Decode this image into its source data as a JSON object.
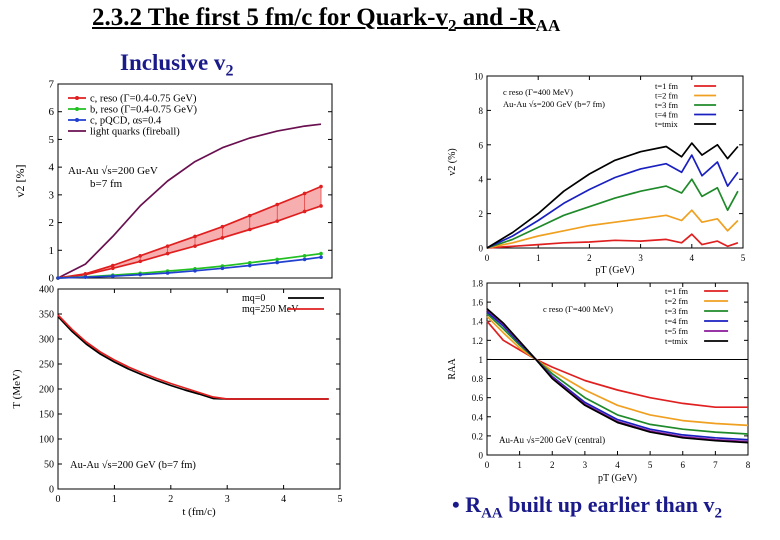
{
  "slide": {
    "title": "2.3.2 The first 5 fm/c for Quark-v",
    "title_sub": "2",
    "title_mid": " and -R",
    "title_sub2": "AA",
    "subtitle": "Inclusive v",
    "subtitle_sub": "2",
    "footnote_bullet": "•",
    "footnote_a": "R",
    "footnote_sub": "AA",
    "footnote_b": " built up earlier than v",
    "footnote_sub2": "2",
    "colors": {
      "title_blue": "#1a1a8a"
    }
  },
  "chart_data": [
    {
      "id": "v2-time",
      "type": "line",
      "title": "",
      "xlabel": "",
      "ylabel": "v2 [%]",
      "xlim": [
        0,
        5
      ],
      "ylim": [
        0,
        7
      ],
      "yticks": [
        0,
        1,
        2,
        3,
        4,
        5,
        6,
        7
      ],
      "xticks": [],
      "legend": [
        {
          "label": "c, reso (Γ=0.4-0.75 GeV)",
          "color": "#e02020"
        },
        {
          "label": "b, reso (Γ=0.4-0.75 GeV)",
          "color": "#22c022"
        },
        {
          "label": "c, pQCD, αs=0.4",
          "color": "#2040d0"
        },
        {
          "label": "light quarks (fireball)",
          "color": "#6a1050"
        }
      ],
      "annotations": [
        "Au-Au √s=200 GeV",
        "b=7 fm"
      ],
      "series": [
        {
          "name": "light quarks (fireball)",
          "color": "#6a1050",
          "x": [
            0,
            0.5,
            1,
            1.5,
            2,
            2.5,
            3,
            3.5,
            4,
            4.5,
            4.8
          ],
          "y": [
            0,
            0.5,
            1.5,
            2.6,
            3.5,
            4.2,
            4.7,
            5.05,
            5.3,
            5.48,
            5.55
          ]
        },
        {
          "name": "c, reso upper",
          "color": "#e02020",
          "x": [
            0,
            0.5,
            1,
            1.5,
            2,
            2.5,
            3,
            3.5,
            4,
            4.5,
            4.8
          ],
          "y": [
            0,
            0.15,
            0.45,
            0.8,
            1.15,
            1.5,
            1.85,
            2.25,
            2.65,
            3.05,
            3.3
          ]
        },
        {
          "name": "c, reso lower",
          "color": "#e02020",
          "x": [
            0,
            0.5,
            1,
            1.5,
            2,
            2.5,
            3,
            3.5,
            4,
            4.5,
            4.8
          ],
          "y": [
            0,
            0.12,
            0.35,
            0.6,
            0.88,
            1.15,
            1.45,
            1.75,
            2.05,
            2.4,
            2.6
          ]
        },
        {
          "name": "b, reso",
          "color": "#22c022",
          "x": [
            0,
            0.5,
            1,
            1.5,
            2,
            2.5,
            3,
            3.5,
            4,
            4.5,
            4.8
          ],
          "y": [
            0,
            0.04,
            0.1,
            0.17,
            0.25,
            0.33,
            0.43,
            0.55,
            0.67,
            0.8,
            0.88
          ]
        },
        {
          "name": "c, pQCD",
          "color": "#2040d0",
          "x": [
            0,
            0.5,
            1,
            1.5,
            2,
            2.5,
            3,
            3.5,
            4,
            4.5,
            4.8
          ],
          "y": [
            0,
            0.03,
            0.07,
            0.12,
            0.18,
            0.26,
            0.35,
            0.45,
            0.56,
            0.67,
            0.75
          ]
        }
      ],
      "band": {
        "between": [
          "c, reso upper",
          "c, reso lower"
        ],
        "color": "#f4a0a0"
      }
    },
    {
      "id": "temperature",
      "type": "line",
      "title": "",
      "xlabel": "t (fm/c)",
      "ylabel": "T (MeV)",
      "xlim": [
        0,
        5
      ],
      "ylim": [
        0,
        400
      ],
      "xticks": [
        0,
        1,
        2,
        3,
        4,
        5
      ],
      "yticks": [
        0,
        50,
        100,
        150,
        200,
        250,
        300,
        350,
        400
      ],
      "legend": [
        {
          "label": "mq=0",
          "color": "#000000"
        },
        {
          "label": "mq=250 MeV",
          "color": "#e02020"
        }
      ],
      "annotations": [
        "Au-Au √s=200 GeV (b=7 fm)"
      ],
      "series": [
        {
          "name": "mq=0",
          "color": "#000000",
          "x": [
            0,
            0.25,
            0.5,
            0.75,
            1,
            1.25,
            1.5,
            1.75,
            2,
            2.25,
            2.5,
            2.75,
            3,
            3.5,
            4,
            4.5,
            4.8
          ],
          "y": [
            345,
            315,
            290,
            270,
            254,
            240,
            228,
            217,
            207,
            198,
            190,
            181,
            180,
            180,
            180,
            180,
            180
          ]
        },
        {
          "name": "mq=250 MeV",
          "color": "#e02020",
          "x": [
            0,
            0.25,
            0.5,
            0.75,
            1,
            1.25,
            1.5,
            1.75,
            2,
            2.25,
            2.5,
            2.75,
            3,
            3.5,
            4,
            4.5,
            4.8
          ],
          "y": [
            348,
            319,
            294,
            274,
            258,
            244,
            232,
            221,
            211,
            202,
            193,
            184,
            180,
            180,
            180,
            180,
            180
          ]
        }
      ]
    },
    {
      "id": "v2-pt",
      "type": "line",
      "title": "",
      "xlabel": "pT (GeV)",
      "ylabel": "v2 (%)",
      "xlim": [
        0,
        5
      ],
      "ylim": [
        0,
        10
      ],
      "xticks": [
        0,
        1,
        2,
        3,
        4,
        5
      ],
      "yticks": [
        0,
        2,
        4,
        6,
        8,
        10
      ],
      "legend": [
        {
          "label": "t=1 fm",
          "color": "#e02020"
        },
        {
          "label": "t=2 fm",
          "color": "#f0a020"
        },
        {
          "label": "t=3 fm",
          "color": "#1f8a2a"
        },
        {
          "label": "t=4 fm",
          "color": "#1a20c0"
        },
        {
          "label": "t=tmix",
          "color": "#000000"
        }
      ],
      "annotations": [
        "c reso (Γ=400 MeV)",
        "Au-Au √s=200 GeV (b=7 fm)"
      ],
      "series": [
        {
          "name": "t=1 fm",
          "color": "#e02020",
          "x": [
            0,
            0.5,
            1,
            1.5,
            2,
            2.5,
            3,
            3.5,
            3.8,
            4,
            4.2,
            4.5,
            4.7,
            4.9
          ],
          "y": [
            0,
            0.1,
            0.2,
            0.3,
            0.35,
            0.45,
            0.4,
            0.5,
            0.3,
            0.8,
            0.2,
            0.4,
            0.1,
            0.3
          ]
        },
        {
          "name": "t=2 fm",
          "color": "#f0a020",
          "x": [
            0,
            0.5,
            1,
            1.5,
            2,
            2.5,
            3,
            3.5,
            3.8,
            4,
            4.2,
            4.5,
            4.7,
            4.9
          ],
          "y": [
            0,
            0.3,
            0.7,
            1.0,
            1.3,
            1.5,
            1.7,
            1.9,
            1.6,
            2.2,
            1.5,
            1.7,
            1.0,
            1.6
          ]
        },
        {
          "name": "t=3 fm",
          "color": "#1f8a2a",
          "x": [
            0,
            0.5,
            1,
            1.5,
            2,
            2.5,
            3,
            3.5,
            3.8,
            4,
            4.2,
            4.5,
            4.7,
            4.9
          ],
          "y": [
            0,
            0.5,
            1.2,
            1.9,
            2.4,
            2.9,
            3.3,
            3.6,
            3.2,
            4.0,
            3.0,
            3.5,
            2.2,
            3.3
          ]
        },
        {
          "name": "t=4 fm",
          "color": "#1a20c0",
          "x": [
            0,
            0.5,
            1,
            1.5,
            2,
            2.5,
            3,
            3.5,
            3.8,
            4,
            4.2,
            4.5,
            4.7,
            4.9
          ],
          "y": [
            0,
            0.7,
            1.6,
            2.6,
            3.4,
            4.1,
            4.6,
            4.9,
            4.4,
            5.4,
            4.2,
            5.0,
            3.6,
            4.4
          ]
        },
        {
          "name": "t=tmix",
          "color": "#000000",
          "x": [
            0,
            0.5,
            1,
            1.5,
            2,
            2.5,
            3,
            3.5,
            3.8,
            4,
            4.2,
            4.5,
            4.7,
            4.9
          ],
          "y": [
            0,
            0.9,
            2.0,
            3.3,
            4.3,
            5.1,
            5.6,
            5.9,
            5.3,
            6.1,
            5.4,
            6.0,
            5.2,
            5.9
          ]
        }
      ]
    },
    {
      "id": "raa-pt",
      "type": "line",
      "title": "",
      "xlabel": "pT (GeV)",
      "ylabel": "RAA",
      "xlim": [
        0,
        8
      ],
      "ylim": [
        0,
        1.8
      ],
      "xticks": [
        0,
        1,
        2,
        3,
        4,
        5,
        6,
        7,
        8
      ],
      "yticks": [
        0,
        0.2,
        0.4,
        0.6,
        0.8,
        1,
        1.2,
        1.4,
        1.6,
        1.8
      ],
      "legend": [
        {
          "label": "t=1 fm",
          "color": "#e02020"
        },
        {
          "label": "t=2 fm",
          "color": "#f0a020"
        },
        {
          "label": "t=3 fm",
          "color": "#1f8a2a"
        },
        {
          "label": "t=4 fm",
          "color": "#1a20c0"
        },
        {
          "label": "t=5 fm",
          "color": "#8a1a9a"
        },
        {
          "label": "t=tmix",
          "color": "#000000"
        }
      ],
      "annotations": [
        "c reso (Γ=400 MeV)",
        "Au-Au √s=200 GeV (central)"
      ],
      "series": [
        {
          "name": "t=1 fm",
          "color": "#e02020",
          "x": [
            0,
            0.5,
            1,
            1.5,
            2,
            3,
            4,
            5,
            6,
            7,
            8
          ],
          "y": [
            1.4,
            1.2,
            1.1,
            1.0,
            0.92,
            0.78,
            0.68,
            0.6,
            0.54,
            0.5,
            0.5
          ]
        },
        {
          "name": "t=2 fm",
          "color": "#f0a020",
          "x": [
            0,
            0.5,
            1,
            1.5,
            2,
            3,
            4,
            5,
            6,
            7,
            8
          ],
          "y": [
            1.45,
            1.28,
            1.12,
            1.0,
            0.88,
            0.68,
            0.52,
            0.42,
            0.36,
            0.33,
            0.31
          ]
        },
        {
          "name": "t=3 fm",
          "color": "#1f8a2a",
          "x": [
            0,
            0.5,
            1,
            1.5,
            2,
            3,
            4,
            5,
            6,
            7,
            8
          ],
          "y": [
            1.48,
            1.32,
            1.15,
            1.0,
            0.85,
            0.6,
            0.42,
            0.32,
            0.27,
            0.24,
            0.22
          ]
        },
        {
          "name": "t=4 fm",
          "color": "#1a20c0",
          "x": [
            0,
            0.5,
            1,
            1.5,
            2,
            3,
            4,
            5,
            6,
            7,
            8
          ],
          "y": [
            1.5,
            1.35,
            1.17,
            1.0,
            0.82,
            0.55,
            0.37,
            0.27,
            0.21,
            0.18,
            0.16
          ]
        },
        {
          "name": "t=5 fm",
          "color": "#8a1a9a",
          "x": [
            0,
            0.5,
            1,
            1.5,
            2,
            3,
            4,
            5,
            6,
            7,
            8
          ],
          "y": [
            1.52,
            1.37,
            1.18,
            1.0,
            0.81,
            0.53,
            0.35,
            0.25,
            0.19,
            0.16,
            0.14
          ]
        },
        {
          "name": "t=tmix",
          "color": "#000000",
          "x": [
            0,
            0.5,
            1,
            1.5,
            2,
            3,
            4,
            5,
            6,
            7,
            8
          ],
          "y": [
            1.53,
            1.38,
            1.19,
            1.0,
            0.8,
            0.52,
            0.34,
            0.24,
            0.18,
            0.15,
            0.13
          ]
        }
      ],
      "reference_line": 1
    }
  ]
}
